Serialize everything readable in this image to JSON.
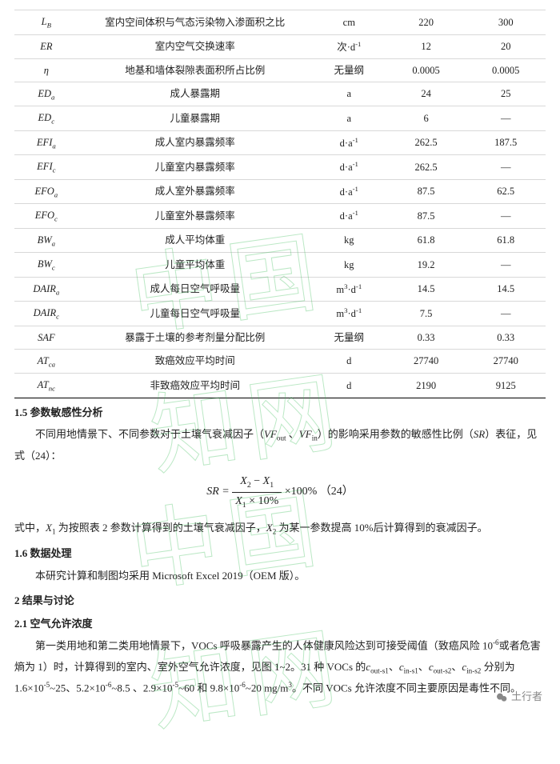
{
  "watermark_text": "中国知网",
  "table": {
    "rows": [
      {
        "sym": "L<sub class=\"sub\">B</sub>",
        "desc": "室内空间体积与气态污染物入渗面积之比",
        "unit": "cm",
        "v1": "220",
        "v2": "300"
      },
      {
        "sym": "ER",
        "desc": "室内空气交换速率",
        "unit": "次·d<sup class=\"sup\">-1</sup>",
        "v1": "12",
        "v2": "20"
      },
      {
        "sym": "η",
        "desc": "地基和墙体裂隙表面积所占比例",
        "unit": "无量纲",
        "v1": "0.0005",
        "v2": "0.0005"
      },
      {
        "sym": "ED<sub class=\"sub\">a</sub>",
        "desc": "成人暴露期",
        "unit": "a",
        "v1": "24",
        "v2": "25"
      },
      {
        "sym": "ED<sub class=\"sub\">c</sub>",
        "desc": "儿童暴露期",
        "unit": "a",
        "v1": "6",
        "v2": "—"
      },
      {
        "sym": "EFI<sub class=\"sub\">a</sub>",
        "desc": "成人室内暴露频率",
        "unit": "d·a<sup class=\"sup\">-1</sup>",
        "v1": "262.5",
        "v2": "187.5"
      },
      {
        "sym": "EFI<sub class=\"sub\">c</sub>",
        "desc": "儿童室内暴露频率",
        "unit": "d·a<sup class=\"sup\">-1</sup>",
        "v1": "262.5",
        "v2": "—"
      },
      {
        "sym": "EFO<sub class=\"sub\">a</sub>",
        "desc": "成人室外暴露频率",
        "unit": "d·a<sup class=\"sup\">-1</sup>",
        "v1": "87.5",
        "v2": "62.5"
      },
      {
        "sym": "EFO<sub class=\"sub\">c</sub>",
        "desc": "儿童室外暴露频率",
        "unit": "d·a<sup class=\"sup\">-1</sup>",
        "v1": "87.5",
        "v2": "—"
      },
      {
        "sym": "BW<sub class=\"sub\">a</sub>",
        "desc": "成人平均体重",
        "unit": "kg",
        "v1": "61.8",
        "v2": "61.8"
      },
      {
        "sym": "BW<sub class=\"sub\">c</sub>",
        "desc": "儿童平均体重",
        "unit": "kg",
        "v1": "19.2",
        "v2": "—"
      },
      {
        "sym": "DAIR<sub class=\"sub\">a</sub>",
        "desc": "成人每日空气呼吸量",
        "unit": "m<sup class=\"sup\">3</sup>·d<sup class=\"sup\">-1</sup>",
        "v1": "14.5",
        "v2": "14.5"
      },
      {
        "sym": "DAIR<sub class=\"sub\">c</sub>",
        "desc": "儿童每日空气呼吸量",
        "unit": "m<sup class=\"sup\">3</sup>·d<sup class=\"sup\">-1</sup>",
        "v1": "7.5",
        "v2": "—"
      },
      {
        "sym": "SAF",
        "desc": "暴露于土壤的参考剂量分配比例",
        "unit": "无量纲",
        "v1": "0.33",
        "v2": "0.33"
      },
      {
        "sym": "AT<sub class=\"sub\">ca</sub>",
        "desc": "致癌效应平均时间",
        "unit": "d",
        "v1": "27740",
        "v2": "27740"
      },
      {
        "sym": "AT<sub class=\"sub\">nc</sub>",
        "desc": "非致癌效应平均时间",
        "unit": "d",
        "v1": "2190",
        "v2": "9125"
      }
    ]
  },
  "sections": {
    "s15_title": "1.5 参数敏感性分析",
    "s15_p1": "不同用地情景下、不同参数对于土壤气衰减因子（VF_out 、VF_in）的影响采用参数的敏感性比例（SR）表征，见式（24）：",
    "formula": {
      "numerator": "X_2 − X_1",
      "denominator": "X_1 × 10%",
      "tail": "×100%  （24）",
      "lhs": "SR ="
    },
    "s15_p2": "式中，X_1 为按照表 2 参数计算得到的土壤气衰减因子，X_2 为某一参数提高 10%后计算得到的衰减因子。",
    "s16_title": "1.6 数据处理",
    "s16_p1": "本研究计算和制图均采用 Microsoft Excel 2019（OEM 版）。",
    "s2_title": "2 结果与讨论",
    "s21_title": "2.1 空气允许浓度",
    "s21_p1": "第一类用地和第二类用地情景下，VOCs 呼吸暴露产生的人体健康风险达到可接受阈值（致癌风险 10^-6 或者危害熵为 1）时，计算得到的室内、室外空气允许浓度，见图 1~2。31 种 VOCs 的 c_out-s1、c_in-s1、c_out-s2、c_in-s2 分别为 1.6×10^-5~25、5.2×10^-6~8.5 、2.9×10^-5~60 和 9.8×10^-6~20 mg/m^3。不同 VOCs 允许浓度不同主要原因是毒性不同。"
  },
  "footer": {
    "attribution": "土行者"
  },
  "colors": {
    "text": "#222222",
    "border": "#d8d8d8",
    "bottom_rule": "#000000",
    "watermark": "rgba(60,190,90,0.35)",
    "footer_text": "#888888",
    "background": "#ffffff"
  }
}
